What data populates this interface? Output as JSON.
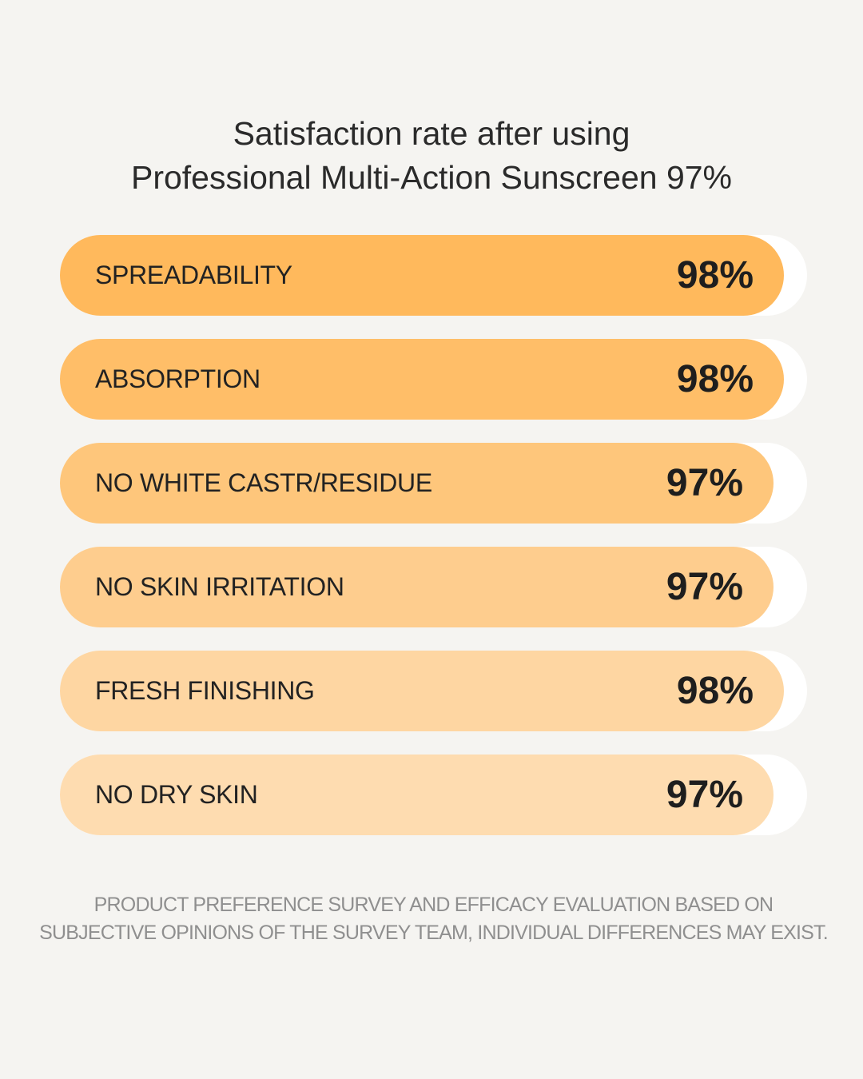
{
  "title": {
    "line1": "Satisfaction rate after using",
    "line2": "Professional Multi-Action Sunscreen 97%"
  },
  "chart_data": {
    "type": "bar",
    "orientation": "horizontal",
    "categories": [
      "SPREADABILITY",
      "ABSORPTION",
      "NO WHITE CASTR/RESIDUE",
      "NO SKIN IRRITATION",
      "FRESH FINISHING",
      "NO DRY SKIN"
    ],
    "values": [
      98,
      98,
      97,
      97,
      98,
      97
    ],
    "value_labels": [
      "98%",
      "98%",
      "97%",
      "97%",
      "98%",
      "97%"
    ],
    "xlim": [
      0,
      100
    ],
    "colors": [
      "#ffb95c",
      "#ffbe68",
      "#fec67b",
      "#fecd8e",
      "#fed6a2",
      "#fedcb0"
    ],
    "track_color": "#ffffff",
    "grid": false,
    "legend": "none"
  },
  "footnote": {
    "line1": "PRODUCT PREFERENCE SURVEY AND EFFICACY EVALUATION BASED ON",
    "line2": "SUBJECTIVE OPINIONS OF THE SURVEY TEAM, INDIVIDUAL DIFFERENCES MAY EXIST."
  }
}
